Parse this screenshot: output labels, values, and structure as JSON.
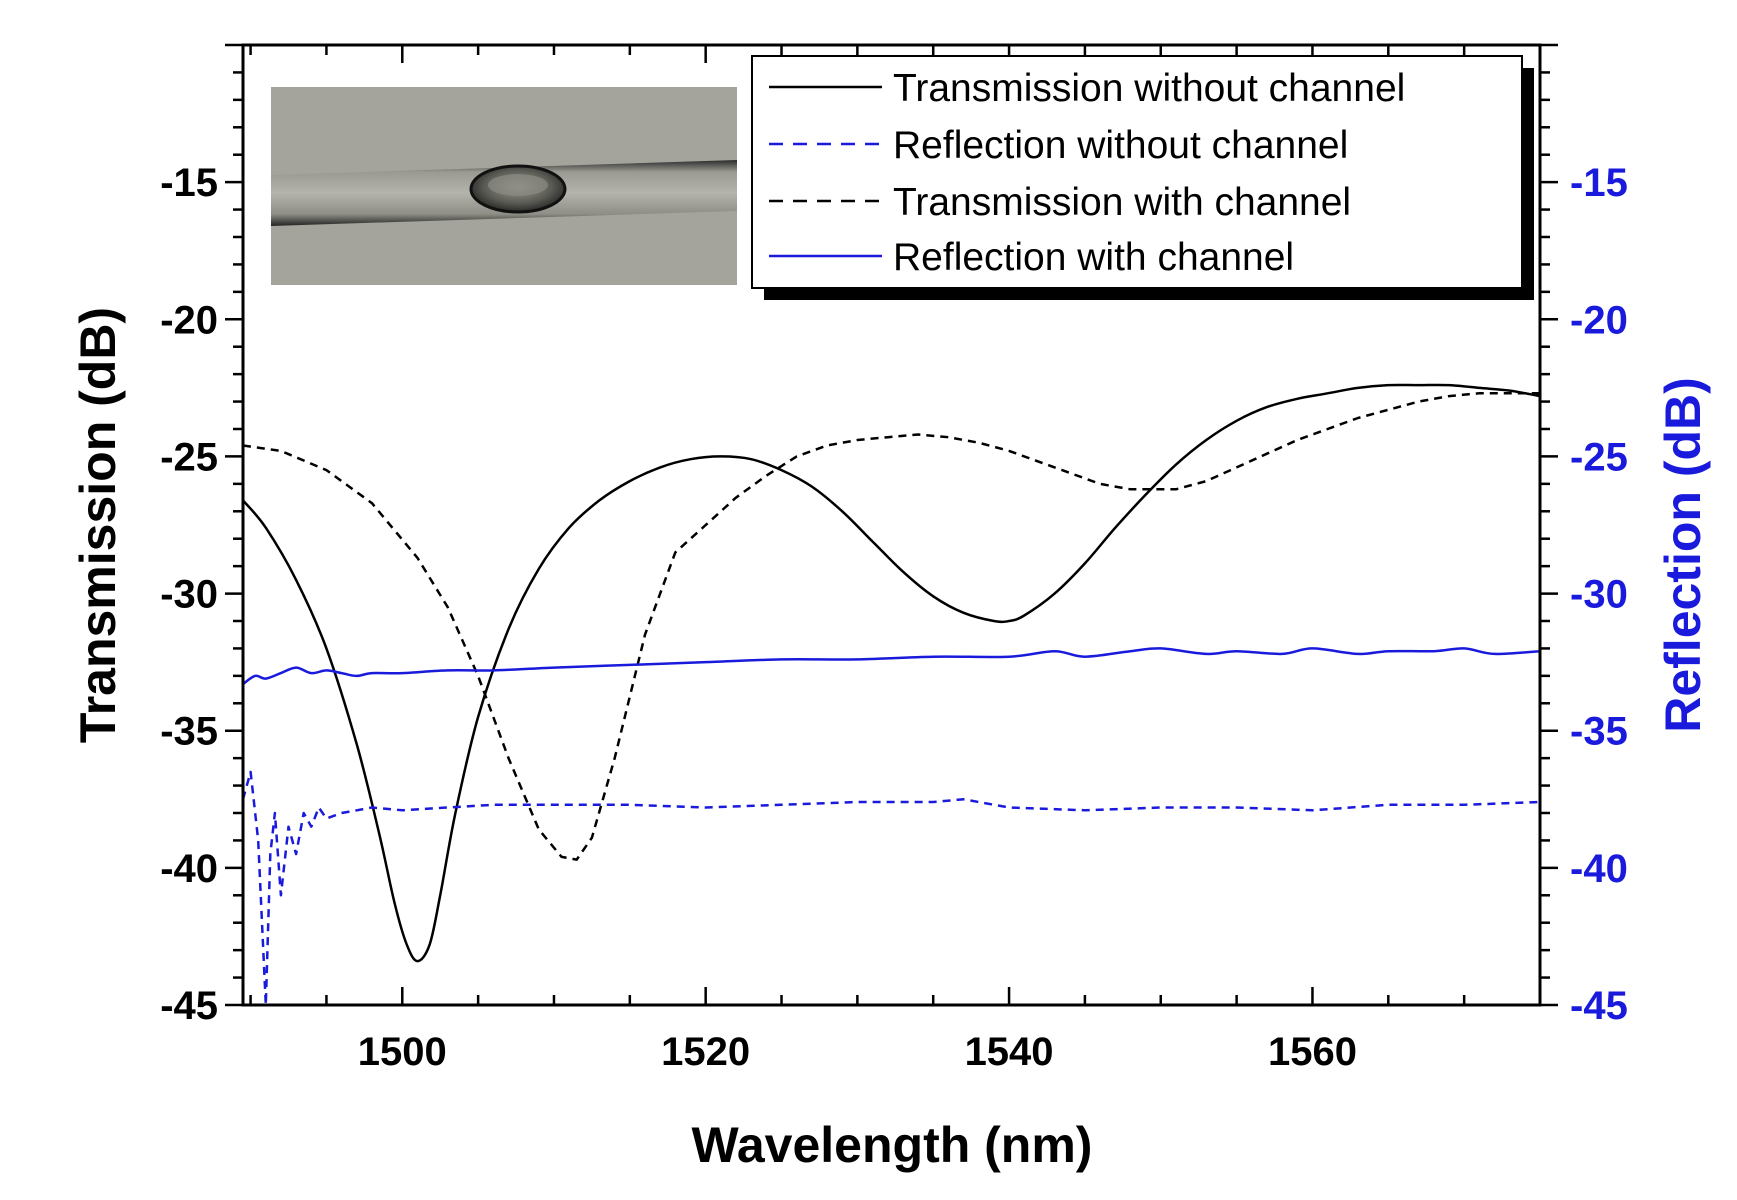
{
  "chart_data": {
    "type": "line",
    "xlabel": "Wavelength (nm)",
    "ylabel": "Transmission (dB)",
    "y2label": "Reflection (dB)",
    "xlim": [
      1489.5,
      1575
    ],
    "ylim": [
      -45,
      -10
    ],
    "y2lim": [
      -45,
      -10
    ],
    "x_ticks": [
      1500,
      1520,
      1540,
      1560
    ],
    "y_ticks": [
      -45,
      -40,
      -35,
      -30,
      -25,
      -20,
      -15
    ],
    "y2_ticks": [
      -45,
      -40,
      -35,
      -30,
      -25,
      -20,
      -15
    ],
    "x_tick_labels": [
      "1500",
      "1520",
      "1540",
      "1560"
    ],
    "y_tick_labels": [
      "-45",
      "-40",
      "-35",
      "-30",
      "-25",
      "-20",
      "-15"
    ],
    "y2_tick_labels": [
      "-45",
      "-40",
      "-35",
      "-30",
      "-25",
      "-20",
      "-15"
    ],
    "grid": false,
    "legend_position": "top-right",
    "inset_image": "microscope photo of fiber with bubble channel",
    "colors": {
      "axis_right": "#1a1adc",
      "blue_series": "#1a1adc",
      "black_series": "#000000"
    },
    "series": [
      {
        "name": "Transmission without channel",
        "axis": "left",
        "color": "#000000",
        "dash": "solid",
        "x": [
          1489.5,
          1491,
          1493,
          1495,
          1497,
          1498.5,
          1499.5,
          1500.3,
          1501,
          1501.8,
          1502.5,
          1503.5,
          1505,
          1507,
          1509,
          1511,
          1513,
          1515,
          1517,
          1519,
          1521,
          1523,
          1525,
          1527,
          1529,
          1531,
          1533,
          1535,
          1537,
          1539,
          1540,
          1541,
          1543,
          1545,
          1547,
          1549,
          1551,
          1553,
          1555,
          1557,
          1559,
          1561,
          1563,
          1565,
          1567,
          1569,
          1571,
          1573,
          1575
        ],
        "y": [
          -26.6,
          -27.6,
          -29.5,
          -32.0,
          -35.5,
          -38.8,
          -41.3,
          -42.8,
          -43.4,
          -42.8,
          -41.0,
          -38.0,
          -34.5,
          -31.3,
          -29.1,
          -27.6,
          -26.6,
          -25.9,
          -25.4,
          -25.1,
          -25.0,
          -25.1,
          -25.5,
          -26.1,
          -27.0,
          -28.1,
          -29.2,
          -30.1,
          -30.7,
          -31.0,
          -31.0,
          -30.8,
          -30.0,
          -28.9,
          -27.6,
          -26.4,
          -25.3,
          -24.4,
          -23.7,
          -23.2,
          -22.9,
          -22.7,
          -22.5,
          -22.4,
          -22.4,
          -22.4,
          -22.5,
          -22.6,
          -22.8
        ]
      },
      {
        "name": "Reflection without channel",
        "axis": "right",
        "color": "#1a1adc",
        "dash": "dashed",
        "x": [
          1489.5,
          1490,
          1490.5,
          1491,
          1491.3,
          1491.6,
          1492,
          1492.5,
          1493,
          1493.5,
          1494,
          1494.5,
          1495,
          1496,
          1497,
          1498,
          1500,
          1503,
          1506,
          1510,
          1515,
          1520,
          1525,
          1530,
          1535,
          1537,
          1540,
          1545,
          1550,
          1555,
          1560,
          1565,
          1570,
          1575
        ],
        "y": [
          -37.5,
          -36.5,
          -39.0,
          -45.0,
          -39.5,
          -38.0,
          -41.0,
          -38.5,
          -39.5,
          -38.0,
          -38.5,
          -37.8,
          -38.2,
          -38.0,
          -37.9,
          -37.8,
          -37.9,
          -37.8,
          -37.7,
          -37.7,
          -37.7,
          -37.8,
          -37.7,
          -37.6,
          -37.6,
          -37.5,
          -37.8,
          -37.9,
          -37.8,
          -37.8,
          -37.9,
          -37.7,
          -37.7,
          -37.6
        ]
      },
      {
        "name": "Transmission with channel",
        "axis": "left",
        "color": "#000000",
        "dash": "dashed",
        "x": [
          1489.5,
          1492,
          1495,
          1498,
          1501,
          1503,
          1505,
          1507,
          1509,
          1510.5,
          1511.5,
          1512.5,
          1514,
          1516,
          1518,
          1520,
          1522,
          1524,
          1526,
          1528,
          1530,
          1532,
          1534,
          1536,
          1538,
          1540,
          1542,
          1544,
          1546,
          1548,
          1550,
          1551,
          1553,
          1555,
          1557,
          1559,
          1561,
          1563,
          1565,
          1567,
          1569,
          1571,
          1573,
          1575
        ],
        "y": [
          -24.6,
          -24.8,
          -25.5,
          -26.7,
          -28.7,
          -30.5,
          -33.0,
          -36.0,
          -38.6,
          -39.6,
          -39.7,
          -38.9,
          -36.0,
          -31.5,
          -28.5,
          -27.5,
          -26.5,
          -25.7,
          -25.0,
          -24.6,
          -24.4,
          -24.3,
          -24.2,
          -24.3,
          -24.5,
          -24.8,
          -25.2,
          -25.6,
          -26.0,
          -26.2,
          -26.2,
          -26.2,
          -25.9,
          -25.4,
          -24.9,
          -24.4,
          -24.0,
          -23.6,
          -23.3,
          -23.0,
          -22.8,
          -22.7,
          -22.7,
          -22.7
        ]
      },
      {
        "name": "Reflection with channel",
        "axis": "right",
        "color": "#1a1adc",
        "dash": "solid",
        "x": [
          1489.5,
          1490.3,
          1491,
          1492,
          1493,
          1494,
          1495,
          1496,
          1497,
          1498,
          1500,
          1503,
          1506,
          1510,
          1515,
          1520,
          1525,
          1530,
          1535,
          1540,
          1543,
          1545,
          1548,
          1550,
          1553,
          1555,
          1558,
          1560,
          1563,
          1565,
          1568,
          1570,
          1572,
          1575
        ],
        "y": [
          -33.3,
          -33.0,
          -33.1,
          -32.9,
          -32.7,
          -32.9,
          -32.8,
          -32.9,
          -33.0,
          -32.9,
          -32.9,
          -32.8,
          -32.8,
          -32.7,
          -32.6,
          -32.5,
          -32.4,
          -32.4,
          -32.3,
          -32.3,
          -32.1,
          -32.3,
          -32.1,
          -32.0,
          -32.2,
          -32.1,
          -32.2,
          -32.0,
          -32.2,
          -32.1,
          -32.1,
          -32.0,
          -32.2,
          -32.1
        ]
      }
    ]
  }
}
